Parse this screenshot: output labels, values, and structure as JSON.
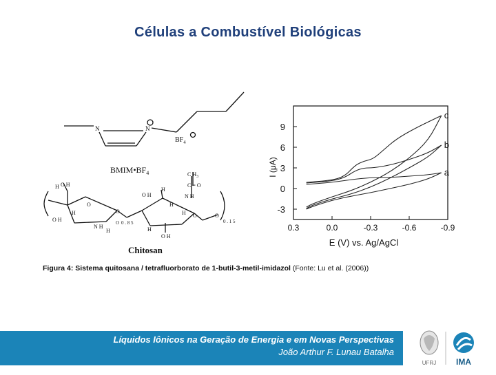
{
  "slide": {
    "title": "Células a Combustível Biológicas"
  },
  "figure": {
    "structure": {
      "ionic_liquid_label": "BMIM",
      "ionic_liquid_anion": "BF",
      "anion_sub": "4",
      "anion_label": "BF",
      "polymer_label": "Chitosan",
      "atoms": {
        "n1": "N",
        "n2": "N",
        "oh1": "O H",
        "h1": "H",
        "o1": "O",
        "o2": "O",
        "oh2": "O H",
        "nh2": "N H",
        "oh3": "O H",
        "h2": "H",
        "nh": "N H",
        "ch3": "C H",
        "ch3_sub": "3",
        "co": "C = O",
        "o3": "O",
        "oh4": "O H",
        "o4": "O",
        "h3": "H",
        "h4": "H",
        "h5": "H",
        "h6": "H",
        "h7": "H",
        "o5": "O",
        "deg1": "0 . 8 5",
        "deg2": "0 . 1 5"
      }
    }
  },
  "chart_data": {
    "type": "line",
    "xlabel": "E (V) vs. Ag/AgCl",
    "ylabel": "I (μA)",
    "xlim": [
      0.3,
      -0.9
    ],
    "ylim": [
      -4.5,
      12
    ],
    "x_ticks": [
      "0.3",
      "0.0",
      "-0.3",
      "-0.6",
      "-0.9"
    ],
    "y_ticks": [
      "9",
      "6",
      "3",
      "0",
      "-3"
    ],
    "grid": false,
    "series": [
      {
        "name": "a",
        "forward": [
          [
            0.2,
            0.6
          ],
          [
            0.0,
            0.9
          ],
          [
            -0.15,
            1.3
          ],
          [
            -0.3,
            1.6
          ],
          [
            -0.45,
            1.6
          ],
          [
            -0.6,
            1.8
          ],
          [
            -0.75,
            2.0
          ],
          [
            -0.85,
            2.3
          ]
        ],
        "reverse": [
          [
            -0.85,
            2.3
          ],
          [
            -0.75,
            1.4
          ],
          [
            -0.6,
            0.6
          ],
          [
            -0.45,
            0.0
          ],
          [
            -0.3,
            -0.6
          ],
          [
            -0.15,
            -1.1
          ],
          [
            0.0,
            -1.7
          ],
          [
            0.15,
            -2.6
          ],
          [
            0.2,
            -3.0
          ]
        ]
      },
      {
        "name": "b",
        "forward": [
          [
            0.2,
            0.8
          ],
          [
            0.0,
            1.1
          ],
          [
            -0.1,
            1.6
          ],
          [
            -0.18,
            2.6
          ],
          [
            -0.25,
            3.0
          ],
          [
            -0.32,
            3.0
          ],
          [
            -0.45,
            3.4
          ],
          [
            -0.6,
            4.2
          ],
          [
            -0.75,
            5.2
          ],
          [
            -0.85,
            6.3
          ]
        ],
        "reverse": [
          [
            -0.85,
            6.3
          ],
          [
            -0.75,
            4.6
          ],
          [
            -0.6,
            3.0
          ],
          [
            -0.45,
            1.5
          ],
          [
            -0.3,
            0.2
          ],
          [
            -0.15,
            -0.8
          ],
          [
            0.0,
            -1.5
          ],
          [
            0.15,
            -2.4
          ],
          [
            0.2,
            -2.9
          ]
        ]
      },
      {
        "name": "c",
        "forward": [
          [
            0.2,
            0.9
          ],
          [
            0.0,
            1.2
          ],
          [
            -0.1,
            1.8
          ],
          [
            -0.18,
            3.4
          ],
          [
            -0.25,
            4.0
          ],
          [
            -0.32,
            4.3
          ],
          [
            -0.4,
            5.6
          ],
          [
            -0.5,
            7.2
          ],
          [
            -0.65,
            8.8
          ],
          [
            -0.85,
            10.6
          ]
        ],
        "reverse": [
          [
            -0.85,
            10.6
          ],
          [
            -0.75,
            7.0
          ],
          [
            -0.6,
            4.4
          ],
          [
            -0.45,
            2.4
          ],
          [
            -0.3,
            0.9
          ],
          [
            -0.15,
            -0.3
          ],
          [
            0.0,
            -1.2
          ],
          [
            0.15,
            -2.2
          ],
          [
            0.2,
            -2.7
          ]
        ]
      }
    ]
  },
  "caption": {
    "label": "Figura 4: Sistema quitosana / tetrafluorborato de 1-butil-3-metil-imidazol",
    "source": "(Fonte: Lu et al. (2006))"
  },
  "footer": {
    "title": "Líquidos Iônicos na Geração de Energia e em Novas Perspectivas",
    "author": "João Arthur F. Lunau Batalha",
    "logo_left_text": "UFRJ",
    "logo_right_text": "IMA",
    "accent": "#1b84b8"
  }
}
